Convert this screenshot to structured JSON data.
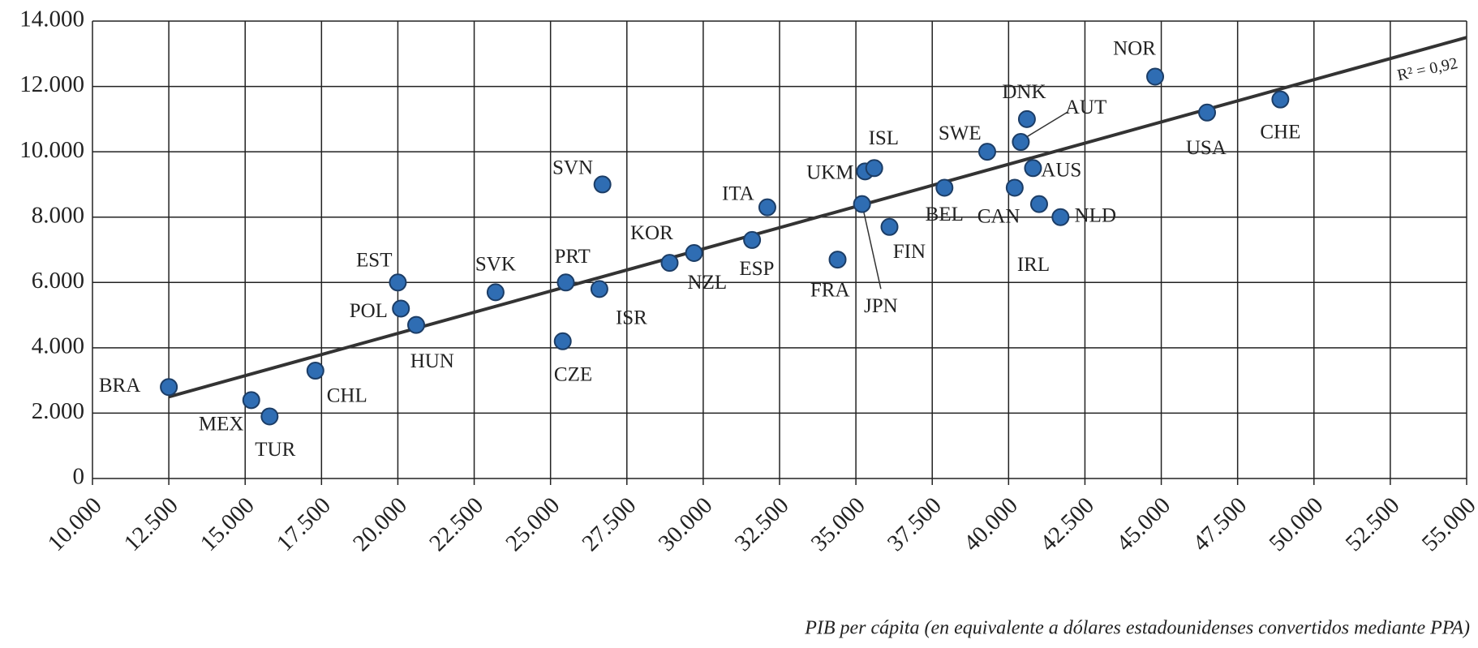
{
  "chart_data": {
    "type": "scatter",
    "x_label": "PIB per cápita (en equivalente a dólares estadounidenses convertidos mediante PPA)",
    "annotation": "R² = 0,92",
    "color": "#2f6db3",
    "line_color": "#333333",
    "grid": true,
    "xlim": [
      10000,
      55000
    ],
    "ylim": [
      0,
      14000
    ],
    "xticks": [
      {
        "value": 10000,
        "label": "10.000"
      },
      {
        "value": 12500,
        "label": "12.500"
      },
      {
        "value": 15000,
        "label": "15.000"
      },
      {
        "value": 17500,
        "label": "17.500"
      },
      {
        "value": 20000,
        "label": "20.000"
      },
      {
        "value": 22500,
        "label": "22.500"
      },
      {
        "value": 25000,
        "label": "25.000"
      },
      {
        "value": 27500,
        "label": "27.500"
      },
      {
        "value": 30000,
        "label": "30.000"
      },
      {
        "value": 32500,
        "label": "32.500"
      },
      {
        "value": 35000,
        "label": "35.000"
      },
      {
        "value": 37500,
        "label": "37.500"
      },
      {
        "value": 40000,
        "label": "40.000"
      },
      {
        "value": 42500,
        "label": "42.500"
      },
      {
        "value": 45000,
        "label": "45.000"
      },
      {
        "value": 47500,
        "label": "47.500"
      },
      {
        "value": 50000,
        "label": "50.000"
      },
      {
        "value": 52500,
        "label": "52.500"
      },
      {
        "value": 55000,
        "label": "55.000"
      }
    ],
    "yticks": [
      0,
      {
        "value": 2000,
        "label": "2.000"
      },
      {
        "value": 4000,
        "label": "4.000"
      },
      {
        "value": 6000,
        "label": "6.000"
      },
      {
        "value": 8000,
        "label": "8.000"
      },
      {
        "value": 10000,
        "label": "10.000"
      },
      {
        "value": 12000,
        "label": "12.000"
      },
      {
        "value": 14000,
        "label": "14.000"
      }
    ],
    "trendline": {
      "x": [
        12500,
        55000
      ],
      "y": [
        2500,
        13500
      ]
    },
    "points": [
      {
        "label": "BRA",
        "x": 12500,
        "y": 2800
      },
      {
        "label": "MEX",
        "x": 15200,
        "y": 2400
      },
      {
        "label": "TUR",
        "x": 15800,
        "y": 1900
      },
      {
        "label": "CHL",
        "x": 17300,
        "y": 3300
      },
      {
        "label": "EST",
        "x": 20000,
        "y": 6000
      },
      {
        "label": "POL",
        "x": 20100,
        "y": 5200
      },
      {
        "label": "HUN",
        "x": 20600,
        "y": 4700
      },
      {
        "label": "SVK",
        "x": 23200,
        "y": 5700
      },
      {
        "label": "SVN",
        "x": 26700,
        "y": 9000
      },
      {
        "label": "PRT",
        "x": 25500,
        "y": 6000
      },
      {
        "label": "ISR",
        "x": 26600,
        "y": 5800
      },
      {
        "label": "CZE",
        "x": 25400,
        "y": 4200
      },
      {
        "label": "KOR",
        "x": 28900,
        "y": 6600
      },
      {
        "label": "NZL",
        "x": 29700,
        "y": 6900
      },
      {
        "label": "ESP",
        "x": 31600,
        "y": 7300
      },
      {
        "label": "ITA",
        "x": 32100,
        "y": 8300
      },
      {
        "label": "FRA",
        "x": 34400,
        "y": 6700
      },
      {
        "label": "JPN",
        "x": 35200,
        "y": 8400
      },
      {
        "label": "UKM",
        "x": 35300,
        "y": 9400
      },
      {
        "label": "ISL",
        "x": 35600,
        "y": 9500
      },
      {
        "label": "FIN",
        "x": 36100,
        "y": 7700
      },
      {
        "label": "BEL",
        "x": 37900,
        "y": 8900
      },
      {
        "label": "SWE",
        "x": 39300,
        "y": 10000
      },
      {
        "label": "CAN",
        "x": 40200,
        "y": 8900
      },
      {
        "label": "DNK",
        "x": 40600,
        "y": 11000
      },
      {
        "label": "AUT",
        "x": 40400,
        "y": 10300
      },
      {
        "label": "AUS",
        "x": 40800,
        "y": 9500
      },
      {
        "label": "IRL",
        "x": 41000,
        "y": 8400
      },
      {
        "label": "NLD",
        "x": 41700,
        "y": 8000
      },
      {
        "label": "NOR",
        "x": 44800,
        "y": 12300
      },
      {
        "label": "USA",
        "x": 46500,
        "y": 11200
      },
      {
        "label": "CHE",
        "x": 48900,
        "y": 11600
      }
    ]
  }
}
